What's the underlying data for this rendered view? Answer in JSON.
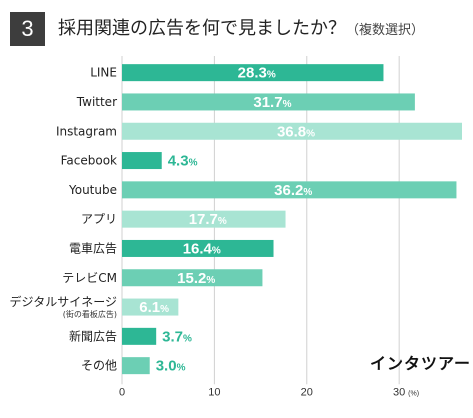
{
  "header": {
    "number": "3",
    "title": "採用関連の広告を何で見ましたか？",
    "subtitle": "（複数選択）"
  },
  "brand": "インタツアー",
  "colors": {
    "dark": "#2db795",
    "mid": "#6ccfb4",
    "light": "#a8e4d3",
    "grid": "#d0d0d0"
  },
  "chart_data": {
    "type": "bar",
    "orientation": "horizontal",
    "title": "採用関連の広告を何で見ましたか？（複数選択）",
    "categories": [
      "LINE",
      "Twitter",
      "Instagram",
      "Facebook",
      "Youtube",
      "アプリ",
      "電車広告",
      "テレビCM",
      "デジタルサイネージ",
      "新聞広告",
      "その他"
    ],
    "category_sublabels": [
      "",
      "",
      "",
      "",
      "",
      "",
      "",
      "",
      "(街の看板広告)",
      "",
      ""
    ],
    "values": [
      28.3,
      31.7,
      36.8,
      4.3,
      36.2,
      17.7,
      16.4,
      15.2,
      6.1,
      3.7,
      3.0
    ],
    "value_labels": [
      "28.3",
      "31.7",
      "36.8",
      "4.3",
      "36.2",
      "17.7",
      "16.4",
      "15.2",
      "6.1",
      "3.7",
      "3.0"
    ],
    "value_unit": "%",
    "bar_colors": [
      "#2db795",
      "#6ccfb4",
      "#a8e4d3",
      "#2db795",
      "#6ccfb4",
      "#a8e4d3",
      "#2db795",
      "#6ccfb4",
      "#a8e4d3",
      "#2db795",
      "#6ccfb4"
    ],
    "label_inside": [
      true,
      true,
      true,
      false,
      true,
      true,
      true,
      true,
      true,
      false,
      false
    ],
    "xlim": [
      0,
      36.8
    ],
    "xticks": [
      0,
      10,
      20,
      30
    ],
    "xtick_labels": [
      "0",
      "10",
      "20",
      "30"
    ],
    "xtick_unit": "(%)",
    "grid": true
  }
}
